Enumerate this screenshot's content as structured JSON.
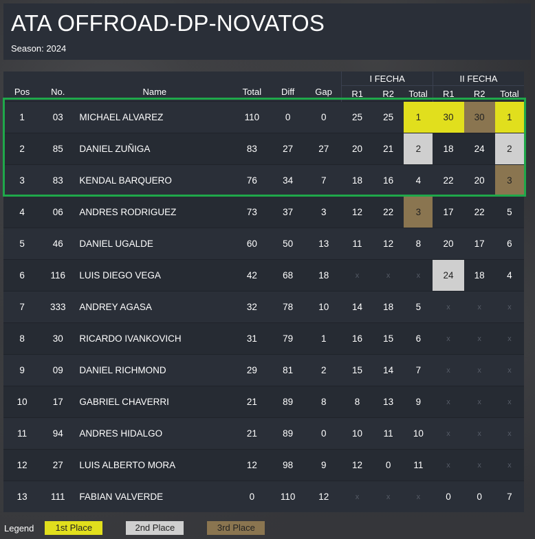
{
  "header": {
    "title": "ATA OFFROAD-DP-NOVATOS",
    "season": "Season: 2024"
  },
  "columns": {
    "pos": "Pos",
    "no": "No.",
    "name": "Name",
    "total": "Total",
    "diff": "Diff",
    "gap": "Gap",
    "groups": [
      "I FECHA",
      "II FECHA"
    ],
    "sub": [
      "R1",
      "R2",
      "Total"
    ]
  },
  "rows": [
    {
      "pos": "1",
      "no": "03",
      "name": "MICHAEL ALVAREZ",
      "total": "110",
      "diff": "0",
      "gap": "0",
      "f1": [
        "25",
        "25",
        "1"
      ],
      "f2": [
        "30",
        "30",
        "1"
      ],
      "f1c": [
        "",
        "",
        "gold"
      ],
      "f2c": [
        "gold",
        "bronze",
        "gold"
      ]
    },
    {
      "pos": "2",
      "no": "85",
      "name": "DANIEL ZUÑIGA",
      "total": "83",
      "diff": "27",
      "gap": "27",
      "f1": [
        "20",
        "21",
        "2"
      ],
      "f2": [
        "18",
        "24",
        "2"
      ],
      "f1c": [
        "",
        "",
        "silver"
      ],
      "f2c": [
        "",
        "",
        "silver"
      ]
    },
    {
      "pos": "3",
      "no": "83",
      "name": "KENDAL BARQUERO",
      "total": "76",
      "diff": "34",
      "gap": "7",
      "f1": [
        "18",
        "16",
        "4"
      ],
      "f2": [
        "22",
        "20",
        "3"
      ],
      "f1c": [
        "",
        "",
        ""
      ],
      "f2c": [
        "",
        "",
        "bronze"
      ]
    },
    {
      "pos": "4",
      "no": "06",
      "name": "ANDRES RODRIGUEZ",
      "total": "73",
      "diff": "37",
      "gap": "3",
      "f1": [
        "12",
        "22",
        "3"
      ],
      "f2": [
        "17",
        "22",
        "5"
      ],
      "f1c": [
        "",
        "",
        "bronze"
      ],
      "f2c": [
        "",
        "",
        ""
      ]
    },
    {
      "pos": "5",
      "no": "46",
      "name": "DANIEL UGALDE",
      "total": "60",
      "diff": "50",
      "gap": "13",
      "f1": [
        "11",
        "12",
        "8"
      ],
      "f2": [
        "20",
        "17",
        "6"
      ],
      "f1c": [
        "",
        "",
        ""
      ],
      "f2c": [
        "",
        "",
        ""
      ]
    },
    {
      "pos": "6",
      "no": "116",
      "name": "LUIS DIEGO VEGA",
      "total": "42",
      "diff": "68",
      "gap": "18",
      "f1": [
        "x",
        "x",
        "x"
      ],
      "f2": [
        "24",
        "18",
        "4"
      ],
      "f1c": [
        "",
        "",
        ""
      ],
      "f2c": [
        "silver",
        "",
        ""
      ]
    },
    {
      "pos": "7",
      "no": "333",
      "name": "ANDREY AGASA",
      "total": "32",
      "diff": "78",
      "gap": "10",
      "f1": [
        "14",
        "18",
        "5"
      ],
      "f2": [
        "x",
        "x",
        "x"
      ],
      "f1c": [
        "",
        "",
        ""
      ],
      "f2c": [
        "",
        "",
        ""
      ]
    },
    {
      "pos": "8",
      "no": "30",
      "name": "RICARDO IVANKOVICH",
      "total": "31",
      "diff": "79",
      "gap": "1",
      "f1": [
        "16",
        "15",
        "6"
      ],
      "f2": [
        "x",
        "x",
        "x"
      ],
      "f1c": [
        "",
        "",
        ""
      ],
      "f2c": [
        "",
        "",
        ""
      ]
    },
    {
      "pos": "9",
      "no": "09",
      "name": "DANIEL RICHMOND",
      "total": "29",
      "diff": "81",
      "gap": "2",
      "f1": [
        "15",
        "14",
        "7"
      ],
      "f2": [
        "x",
        "x",
        "x"
      ],
      "f1c": [
        "",
        "",
        ""
      ],
      "f2c": [
        "",
        "",
        ""
      ]
    },
    {
      "pos": "10",
      "no": "17",
      "name": "GABRIEL CHAVERRI",
      "total": "21",
      "diff": "89",
      "gap": "8",
      "f1": [
        "8",
        "13",
        "9"
      ],
      "f2": [
        "x",
        "x",
        "x"
      ],
      "f1c": [
        "",
        "",
        ""
      ],
      "f2c": [
        "",
        "",
        ""
      ]
    },
    {
      "pos": "11",
      "no": "94",
      "name": "ANDRES HIDALGO",
      "total": "21",
      "diff": "89",
      "gap": "0",
      "f1": [
        "10",
        "11",
        "10"
      ],
      "f2": [
        "x",
        "x",
        "x"
      ],
      "f1c": [
        "",
        "",
        ""
      ],
      "f2c": [
        "",
        "",
        ""
      ]
    },
    {
      "pos": "12",
      "no": "27",
      "name": "LUIS ALBERTO MORA",
      "total": "12",
      "diff": "98",
      "gap": "9",
      "f1": [
        "12",
        "0",
        "11"
      ],
      "f2": [
        "x",
        "x",
        "x"
      ],
      "f1c": [
        "",
        "",
        ""
      ],
      "f2c": [
        "",
        "",
        ""
      ]
    },
    {
      "pos": "13",
      "no": "111",
      "name": "FABIAN VALVERDE",
      "total": "0",
      "diff": "110",
      "gap": "12",
      "f1": [
        "x",
        "x",
        "x"
      ],
      "f2": [
        "0",
        "0",
        "7"
      ],
      "f1c": [
        "",
        "",
        ""
      ],
      "f2c": [
        "",
        "",
        ""
      ]
    }
  ],
  "legend": {
    "label": "Legend",
    "first": "1st Place",
    "second": "2nd Place",
    "third": "3rd Place"
  },
  "colors": {
    "gold": "#e1df1d",
    "silver": "#cfcfcf",
    "bronze": "#8a7550",
    "highlight": "#1fa84a"
  }
}
